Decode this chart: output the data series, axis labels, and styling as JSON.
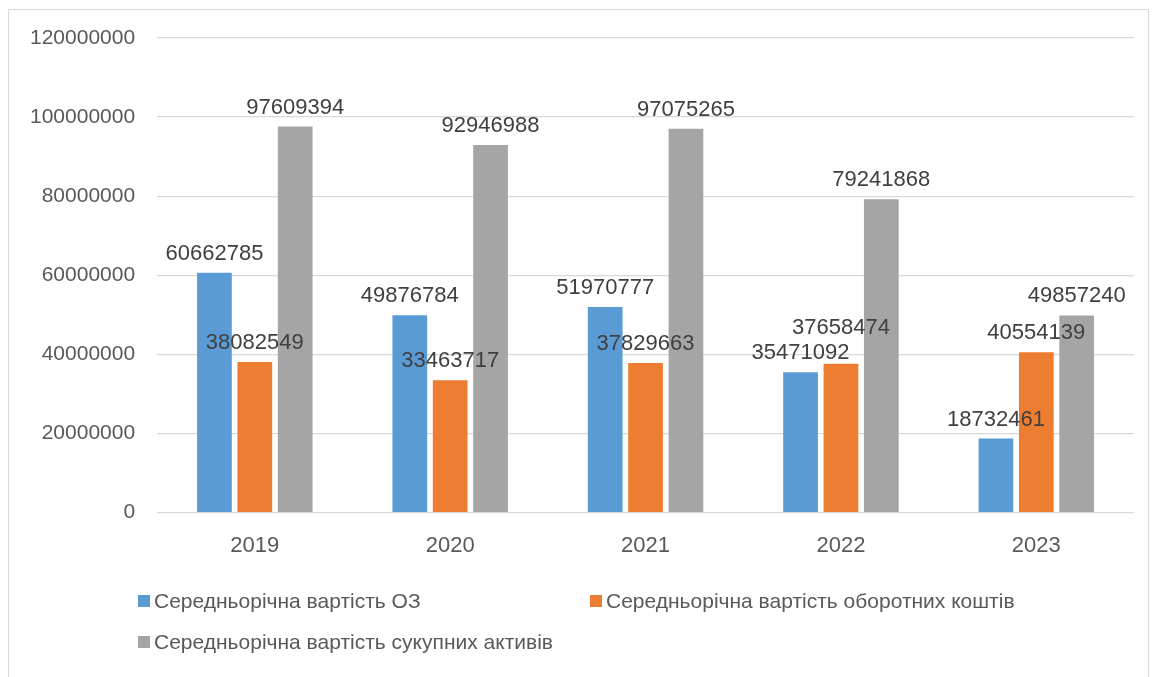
{
  "chart_data": {
    "type": "bar",
    "categories": [
      "2019",
      "2020",
      "2021",
      "2022",
      "2023"
    ],
    "series": [
      {
        "name": "Середньорічна вартість ОЗ",
        "color": "#5b9bd5",
        "values": [
          60662785,
          49876784,
          51970777,
          35471092,
          18732461
        ]
      },
      {
        "name": "Середньорічна вартість оборотних коштів",
        "color": "#ed7d31",
        "values": [
          38082549,
          33463717,
          37829663,
          37658474,
          40554139
        ]
      },
      {
        "name": "Середньорічна вартість сукупних активів",
        "color": "#a5a5a5",
        "values": [
          97609394,
          92946988,
          97075265,
          79241868,
          49857240
        ]
      }
    ],
    "ylim": [
      0,
      120000000
    ],
    "yticks": [
      0,
      20000000,
      40000000,
      60000000,
      80000000,
      100000000,
      120000000
    ],
    "grid": "y",
    "legend": "bottom",
    "data_labels": true
  }
}
